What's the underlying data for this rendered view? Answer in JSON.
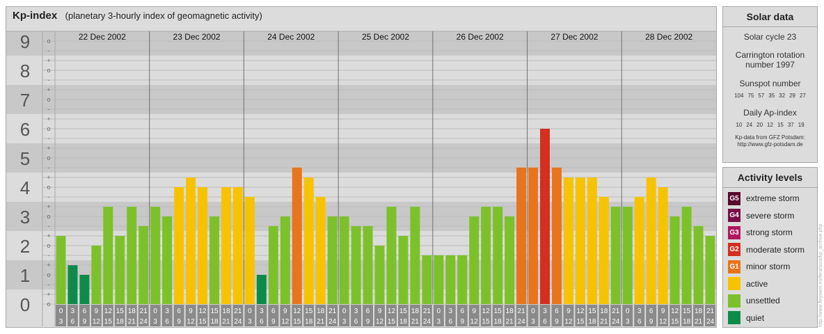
{
  "title": {
    "main": "Kp-index",
    "subtitle": "(planetary 3-hourly index of geomagnetic activity)"
  },
  "chart_data": {
    "type": "bar",
    "ylim": [
      0,
      9
    ],
    "y_major_ticks": [
      "0",
      "1",
      "2",
      "3",
      "4",
      "5",
      "6",
      "7",
      "8",
      "9"
    ],
    "y_minor_ticks": [
      "+",
      "o",
      "-"
    ],
    "days": [
      "22 Dec 2002",
      "23 Dec 2002",
      "24 Dec 2002",
      "25 Dec 2002",
      "26 Dec 2002",
      "27 Dec 2002",
      "28 Dec 2002"
    ],
    "hour_start_labels": [
      "0",
      "3",
      "6",
      "9",
      "12",
      "15",
      "18",
      "21"
    ],
    "hour_end_labels": [
      "3",
      "6",
      "9",
      "12",
      "15",
      "18",
      "21",
      "24"
    ],
    "values": [
      2.33,
      1.33,
      1.0,
      2.0,
      3.33,
      2.33,
      3.33,
      2.67,
      3.33,
      3.0,
      4.0,
      4.33,
      4.0,
      3.0,
      4.0,
      4.0,
      3.67,
      1.0,
      2.67,
      3.0,
      4.67,
      4.33,
      3.67,
      3.0,
      3.0,
      2.67,
      2.67,
      2.0,
      3.33,
      2.33,
      3.33,
      1.67,
      1.67,
      1.67,
      1.67,
      3.0,
      3.33,
      3.33,
      3.0,
      4.67,
      4.67,
      6.0,
      4.67,
      4.33,
      4.33,
      4.33,
      3.67,
      3.33,
      3.33,
      3.67,
      4.33,
      4.0,
      3.0,
      3.33,
      2.67,
      2.33
    ],
    "colors": {
      "quiet": "#0e8b4a",
      "unsettled": "#7cc12a",
      "active": "#f7c300",
      "minor": "#e8741c",
      "moderate": "#d42f1f",
      "strong": "#b0185b",
      "severe": "#7a0f45",
      "extreme": "#5a0a2d",
      "hour_label_bg": "#8a8a8a"
    }
  },
  "solar_data": {
    "title": "Solar data",
    "cycle": "Solar cycle 23",
    "carrington_line1": "Carrington rotation",
    "carrington_line2": "number 1997",
    "sunspot_title": "Sunspot number",
    "sunspot_values": [
      "104",
      "75",
      "57",
      "35",
      "32",
      "29",
      "27"
    ],
    "ap_title": "Daily Ap-index",
    "ap_values": [
      "10",
      "24",
      "20",
      "12",
      "15",
      "37",
      "19"
    ],
    "credit_line1": "Kp-data from GFZ Potsdam:",
    "credit_line2": "http://www.gfz-potsdam.de"
  },
  "activity_levels": {
    "title": "Activity levels",
    "items": [
      {
        "code": "G5",
        "label": "extreme storm",
        "color": "#5a0a2d"
      },
      {
        "code": "G4",
        "label": "severe storm",
        "color": "#7a0f45"
      },
      {
        "code": "G3",
        "label": "strong storm",
        "color": "#b0185b"
      },
      {
        "code": "G2",
        "label": "moderate storm",
        "color": "#d42f1f"
      },
      {
        "code": "G1",
        "label": "minor storm",
        "color": "#e8741c"
      },
      {
        "code": "",
        "label": "active",
        "color": "#f7c300"
      },
      {
        "code": "",
        "label": "unsettled",
        "color": "#7cc12a"
      },
      {
        "code": "",
        "label": "quiet",
        "color": "#0e8b4a"
      }
    ]
  },
  "watermark": "http://www.fleyswor.eu/fera/sura/kp_archive.php"
}
